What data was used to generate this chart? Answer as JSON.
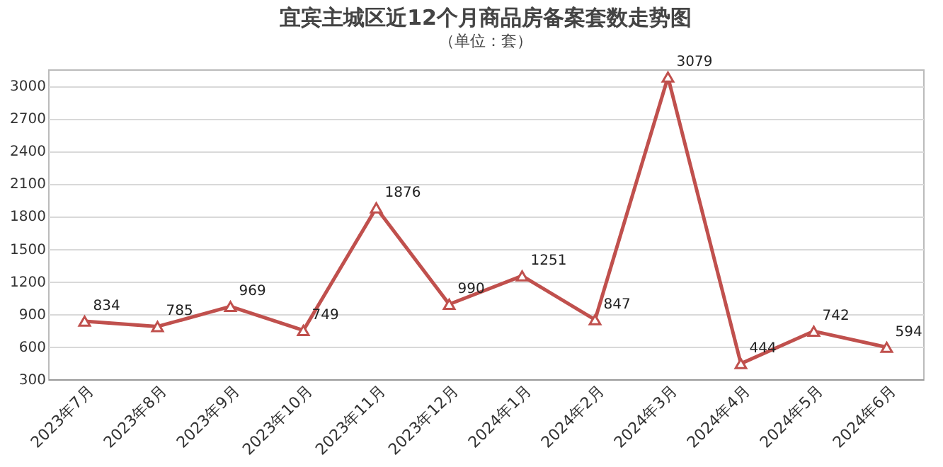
{
  "chart_data": {
    "type": "line",
    "title": "宜宾主城区近12个月商品房备案套数走势图",
    "subtitle": "（单位：套）",
    "categories": [
      "2023年7月",
      "2023年8月",
      "2023年9月",
      "2023年10月",
      "2023年11月",
      "2023年12月",
      "2024年1月",
      "2024年2月",
      "2024年3月",
      "2024年4月",
      "2024年5月",
      "2024年6月"
    ],
    "series": [
      {
        "color": "#c0504d",
        "values": [
          834,
          785,
          969,
          749,
          1876,
          990,
          1251,
          847,
          3079,
          444,
          742,
          594
        ]
      }
    ],
    "ylim": [
      300,
      3150
    ],
    "yticks": [
      300,
      600,
      900,
      1200,
      1500,
      1800,
      2100,
      2400,
      2700,
      3000
    ],
    "grid": "y",
    "marker": "triangle",
    "line_style": "solid",
    "data_labels": true,
    "legend": false
  }
}
